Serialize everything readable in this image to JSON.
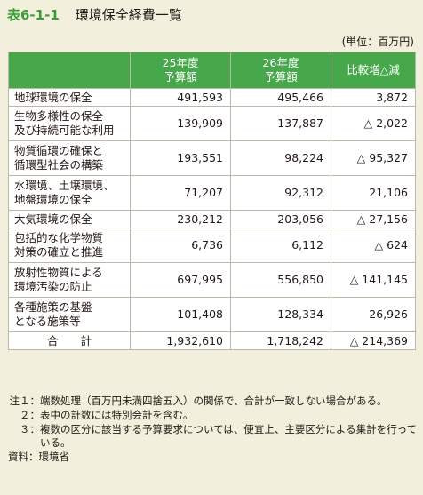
{
  "title": {
    "number": "表6-1-1",
    "text": "環境保全経費一覧"
  },
  "unit": "(単位：百万円)",
  "table": {
    "headers": {
      "category": "",
      "fy25": "25年度\n予算額",
      "fy26": "26年度\n予算額",
      "diff": "比較増△減"
    },
    "rows": [
      {
        "name": "地球環境の保全",
        "fy25": "491,593",
        "fy26": "495,466",
        "diff": "3,872"
      },
      {
        "name": "生物多様性の保全\n及び持続可能な利用",
        "fy25": "139,909",
        "fy26": "137,887",
        "diff": "△ 2,022"
      },
      {
        "name": "物質循環の確保と\n循環型社会の構築",
        "fy25": "193,551",
        "fy26": "98,224",
        "diff": "△ 95,327"
      },
      {
        "name": "水環境、土壌環境、\n地盤環境の保全",
        "fy25": "71,207",
        "fy26": "92,312",
        "diff": "21,106"
      },
      {
        "name": "大気環境の保全",
        "fy25": "230,212",
        "fy26": "203,056",
        "diff": "△ 27,156"
      },
      {
        "name": "包括的な化学物質\n対策の確立と推進",
        "fy25": "6,736",
        "fy26": "6,112",
        "diff": "△ 624"
      },
      {
        "name": "放射性物質による\n環境汚染の防止",
        "fy25": "697,995",
        "fy26": "556,850",
        "diff": "△ 141,145"
      },
      {
        "name": "各種施策の基盤\nとなる施策等",
        "fy25": "101,408",
        "fy26": "128,334",
        "diff": "26,926"
      }
    ],
    "total": {
      "label": "合　　計",
      "fy25": "1,932,610",
      "fy26": "1,718,242",
      "diff": "△ 214,369"
    }
  },
  "notes": [
    {
      "label": "注１：",
      "text": "端数処理（百万円未満四捨五入）の関係で、合計が一致しない場合がある。"
    },
    {
      "label": "２：",
      "text": "表中の計数には特別会計を含む。"
    },
    {
      "label": "３：",
      "text": "複数の区分に該当する予算要求については、便宜上、主要区分による集計を行っている。"
    }
  ],
  "source": "資料：環境省"
}
